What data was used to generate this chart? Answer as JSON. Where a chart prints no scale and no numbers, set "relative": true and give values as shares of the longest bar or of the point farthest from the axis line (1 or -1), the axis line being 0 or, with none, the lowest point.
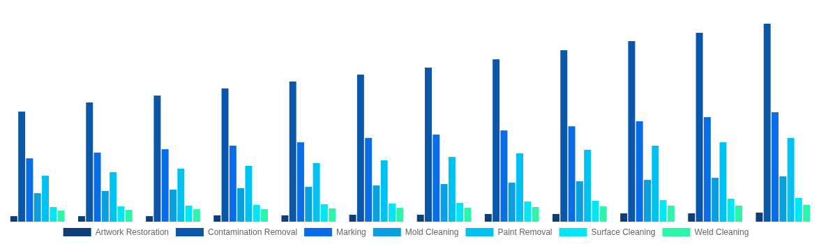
{
  "chart_data": {
    "type": "bar",
    "relative": true,
    "legend": "bottom",
    "categories": [
      null,
      null,
      null,
      null,
      null,
      null,
      null,
      null,
      null,
      null,
      null,
      null
    ],
    "series": [
      {
        "name": "Artwork Restoration",
        "color": "#0d3e7a",
        "values": [
          0.028,
          0.028,
          0.028,
          0.032,
          0.032,
          0.035,
          0.035,
          0.039,
          0.039,
          0.042,
          0.042,
          0.046
        ]
      },
      {
        "name": "Contamination Removal",
        "color": "#0a56a8",
        "values": [
          0.556,
          0.602,
          0.637,
          0.673,
          0.708,
          0.743,
          0.778,
          0.82,
          0.866,
          0.912,
          0.954,
          1
        ]
      },
      {
        "name": "Marking",
        "color": "#0a6de8",
        "values": [
          0.32,
          0.349,
          0.366,
          0.384,
          0.401,
          0.423,
          0.44,
          0.461,
          0.482,
          0.507,
          0.528,
          0.553
        ]
      },
      {
        "name": "Mold Cleaning",
        "color": "#0a9fe0",
        "values": [
          0.144,
          0.155,
          0.162,
          0.169,
          0.176,
          0.183,
          0.19,
          0.197,
          0.204,
          0.211,
          0.222,
          0.229
        ]
      },
      {
        "name": "Paint Removal",
        "color": "#00c2f2",
        "values": [
          0.232,
          0.25,
          0.268,
          0.282,
          0.296,
          0.31,
          0.327,
          0.345,
          0.363,
          0.384,
          0.401,
          0.423
        ]
      },
      {
        "name": "Surface Cleaning",
        "color": "#00e6f5",
        "values": [
          0.074,
          0.077,
          0.081,
          0.085,
          0.088,
          0.092,
          0.095,
          0.102,
          0.106,
          0.109,
          0.116,
          0.12
        ]
      },
      {
        "name": "Weld Cleaning",
        "color": "#2af5a8",
        "values": [
          0.056,
          0.06,
          0.063,
          0.063,
          0.067,
          0.07,
          0.07,
          0.074,
          0.077,
          0.081,
          0.081,
          0.085
        ]
      }
    ]
  }
}
